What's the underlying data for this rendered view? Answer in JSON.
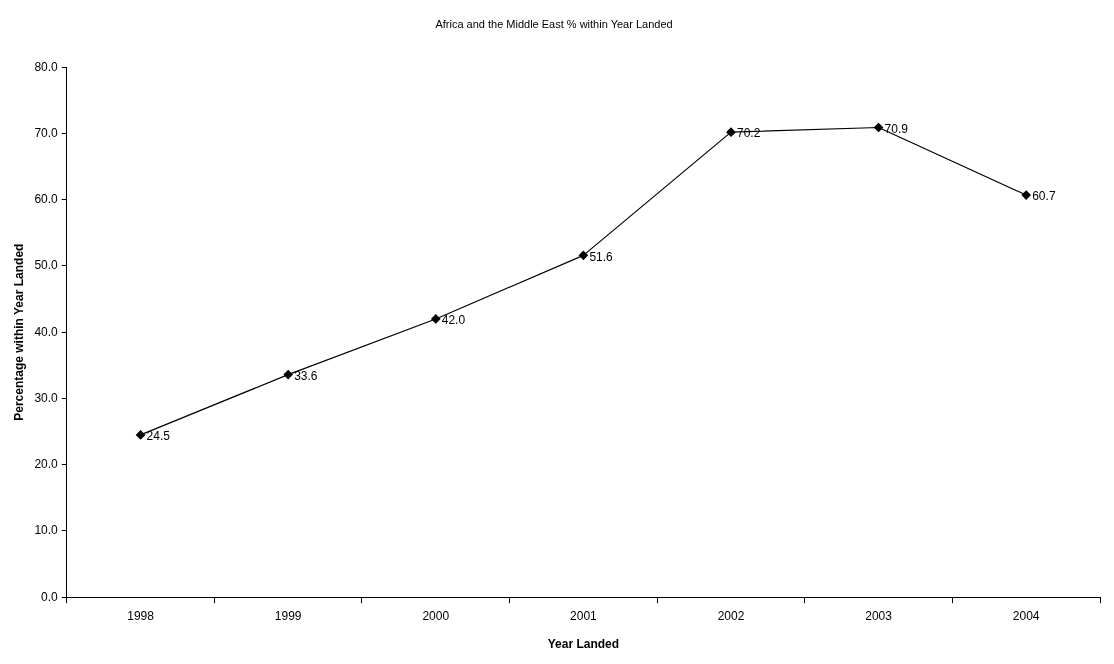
{
  "chart_data": {
    "type": "line",
    "title": "Africa and the Middle East % within Year Landed",
    "xlabel": "Year Landed",
    "ylabel": "Percentage within Year Landed",
    "categories": [
      "1998",
      "1999",
      "2000",
      "2001",
      "2002",
      "2003",
      "2004"
    ],
    "series": [
      {
        "color": "#000000",
        "values": [
          24.5,
          33.6,
          42.0,
          51.6,
          70.2,
          70.9,
          60.7
        ],
        "value_labels": [
          "24.5",
          "33.6",
          "42.0",
          "51.6",
          "70.2",
          "70.9",
          "60.7"
        ]
      }
    ],
    "ylim": [
      0,
      80
    ],
    "yticks": [
      {
        "value": 0,
        "label": "0.0"
      },
      {
        "value": 10,
        "label": "10.0"
      },
      {
        "value": 20,
        "label": "20.0"
      },
      {
        "value": 30,
        "label": "30.0"
      },
      {
        "value": 40,
        "label": "40.0"
      },
      {
        "value": 50,
        "label": "50.0"
      },
      {
        "value": 60,
        "label": "60.0"
      },
      {
        "value": 70,
        "label": "70.0"
      },
      {
        "value": 80,
        "label": "80.0"
      }
    ],
    "grid": false,
    "legend": false,
    "marker": "diamond",
    "line_style": "solid"
  }
}
